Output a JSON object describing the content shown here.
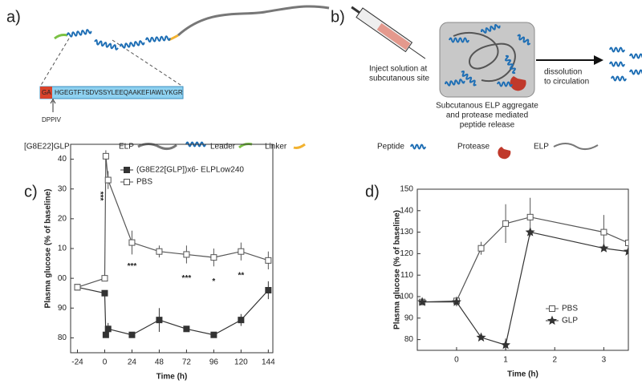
{
  "panels": {
    "a": {
      "label": "a)",
      "prefix": "GA",
      "sequence": "HGEGTFTSDVSSYLEEQAAKEFIAWLYKGR",
      "enzyme": "DPPIV",
      "legend": [
        "[G8E22]GLP",
        "ELP",
        "Leader",
        "Linker"
      ]
    },
    "b": {
      "label": "b)",
      "inject": [
        "Inject solution at",
        "subcutanous site"
      ],
      "dissolution": [
        "dissolution",
        "to circulation"
      ],
      "caption": [
        "Subcutanous ELP aggregate",
        "and protease mediated",
        "peptide release"
      ],
      "legend": [
        "Peptide",
        "Protease",
        "ELP"
      ]
    }
  },
  "chart_data": [
    {
      "type": "line",
      "panel": "c)",
      "x_label": "Time (h)",
      "y_label": "Plasma glucose (% of baseline)",
      "x": [
        -24,
        0,
        1,
        3,
        24,
        48,
        72,
        96,
        120,
        144
      ],
      "series": [
        {
          "name": "(G8E22[GLP])x6- ELPLow240",
          "color": "#333333",
          "marker": "filled-square",
          "values": [
            97,
            95,
            81,
            83,
            81,
            86,
            83,
            81,
            86,
            96
          ],
          "errors": [
            1,
            1,
            1,
            2,
            1,
            4,
            1,
            1,
            2,
            3
          ]
        },
        {
          "name": "PBS",
          "color": "#555555",
          "marker": "open-square",
          "values": [
            97,
            100,
            141,
            133,
            112,
            109,
            108,
            107,
            109,
            106
          ],
          "errors": [
            1,
            1,
            2,
            3,
            4,
            2,
            3,
            3,
            3,
            3
          ]
        }
      ],
      "annotations": [
        {
          "text": "***",
          "x": 3
        },
        {
          "text": "***",
          "x": 24
        },
        {
          "text": "***",
          "x": 72
        },
        {
          "text": "*",
          "x": 96
        },
        {
          "text": "**",
          "x": 120
        }
      ],
      "xlim": [
        -30,
        148
      ],
      "xticks": [
        -24,
        0,
        24,
        48,
        72,
        96,
        120,
        144
      ],
      "ylim": [
        75,
        145
      ],
      "yticks": [
        80,
        90,
        {
          "value": 100,
          "label": "00"
        },
        {
          "value": 110,
          "label": "10"
        },
        {
          "value": 120,
          "label": "20"
        },
        {
          "value": 130,
          "label": "30"
        },
        {
          "value": 140,
          "label": "40"
        }
      ]
    },
    {
      "type": "line",
      "panel": "d)",
      "x_label": "Time (h)",
      "y_label": "Plasma glucose (% of baseline)",
      "x": [
        -0.7,
        0,
        0.5,
        1,
        1.5,
        3,
        3.5
      ],
      "series": [
        {
          "name": "PBS",
          "color": "#555555",
          "marker": "open-square",
          "values": [
            97.5,
            98,
            122.5,
            134,
            137,
            130,
            125
          ],
          "errors": [
            0,
            2,
            3,
            9,
            9,
            8,
            0
          ]
        },
        {
          "name": "GLP",
          "color": "#333333",
          "marker": "star",
          "values": [
            97.5,
            97.5,
            81,
            77.5,
            130,
            122.5,
            121
          ],
          "errors": [
            0,
            2,
            1,
            3,
            1,
            1,
            0
          ]
        }
      ],
      "xlim": [
        -0.8,
        3.5
      ],
      "xticks": [
        0,
        1,
        2,
        3
      ],
      "ylim": [
        75,
        150
      ],
      "yticks": [
        80,
        90,
        100,
        110,
        120,
        130,
        140,
        150
      ]
    }
  ]
}
